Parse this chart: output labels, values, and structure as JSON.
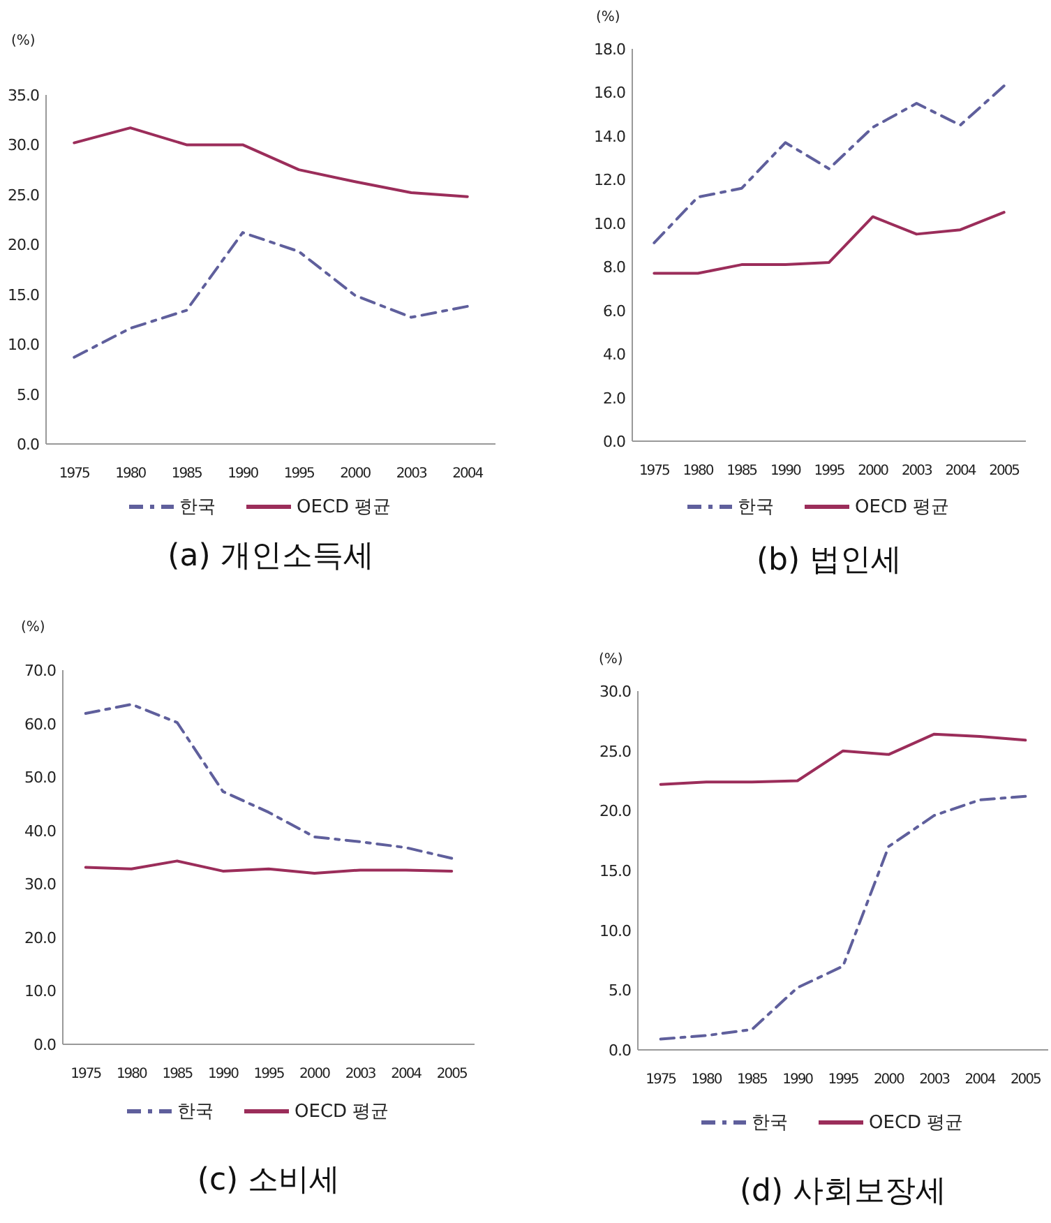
{
  "chart_data": [
    {
      "type": "line",
      "title": "(a) 개인소득세",
      "ylabel": "(%)",
      "categories": [
        "1975",
        "1980",
        "1985",
        "1990",
        "1995",
        "2000",
        "2003",
        "2004"
      ],
      "ylim": [
        0,
        35
      ],
      "yticks": [
        {
          "value": 0,
          "label": "0.0"
        },
        {
          "value": 5,
          "label": "5.0"
        },
        {
          "value": 10,
          "label": "10.0"
        },
        {
          "value": 15,
          "label": "15.0"
        },
        {
          "value": 20,
          "label": "20.0"
        },
        {
          "value": 25,
          "label": "25.0"
        },
        {
          "value": 30,
          "label": "30.0"
        },
        {
          "value": 35,
          "label": "35.0"
        }
      ],
      "legend": "bottom",
      "series": [
        {
          "name": "한국",
          "color": "#5f5f9c",
          "line_style": "dashed",
          "values": [
            8.7,
            11.6,
            13.4,
            21.2,
            19.3,
            14.9,
            12.7,
            13.8
          ]
        },
        {
          "name": "OECD 평균",
          "color": "#9b2d5a",
          "line_style": "solid",
          "values": [
            30.2,
            31.7,
            30.0,
            30.0,
            27.5,
            26.3,
            25.2,
            24.8
          ]
        }
      ]
    },
    {
      "type": "line",
      "title": "(b) 법인세",
      "ylabel": "(%)",
      "categories": [
        "1975",
        "1980",
        "1985",
        "1990",
        "1995",
        "2000",
        "2003",
        "2004",
        "2005"
      ],
      "ylim": [
        0,
        18
      ],
      "yticks": [
        {
          "value": 0,
          "label": "0.0"
        },
        {
          "value": 2,
          "label": "2.0"
        },
        {
          "value": 4,
          "label": "4.0"
        },
        {
          "value": 6,
          "label": "6.0"
        },
        {
          "value": 8,
          "label": "8.0"
        },
        {
          "value": 10,
          "label": "10.0"
        },
        {
          "value": 12,
          "label": "12.0"
        },
        {
          "value": 14,
          "label": "14.0"
        },
        {
          "value": 16,
          "label": "16.0"
        },
        {
          "value": 18,
          "label": "18.0"
        }
      ],
      "legend": "bottom",
      "series": [
        {
          "name": "한국",
          "color": "#5f5f9c",
          "line_style": "dashed",
          "values": [
            9.1,
            11.2,
            11.6,
            13.7,
            12.5,
            14.4,
            15.5,
            14.5,
            16.3
          ]
        },
        {
          "name": "OECD 평균",
          "color": "#9b2d5a",
          "line_style": "solid",
          "values": [
            7.7,
            7.7,
            8.1,
            8.1,
            8.2,
            10.3,
            9.5,
            9.7,
            10.5
          ]
        }
      ]
    },
    {
      "type": "line",
      "title": "(c) 소비세",
      "ylabel": "(%)",
      "categories": [
        "1975",
        "1980",
        "1985",
        "1990",
        "1995",
        "2000",
        "2003",
        "2004",
        "2005"
      ],
      "ylim": [
        0,
        70
      ],
      "yticks": [
        {
          "value": 0,
          "label": "0.0"
        },
        {
          "value": 10,
          "label": "10.0"
        },
        {
          "value": 20,
          "label": "20.0"
        },
        {
          "value": 30,
          "label": "30.0"
        },
        {
          "value": 40,
          "label": "40.0"
        },
        {
          "value": 50,
          "label": "50.0"
        },
        {
          "value": 60,
          "label": "60.0"
        },
        {
          "value": 70,
          "label": "70.0"
        }
      ],
      "legend": "bottom",
      "series": [
        {
          "name": "한국",
          "color": "#5f5f9c",
          "line_style": "dashed",
          "values": [
            61.9,
            63.6,
            60.2,
            47.3,
            43.4,
            38.8,
            37.9,
            36.8,
            34.8
          ]
        },
        {
          "name": "OECD 평균",
          "color": "#9b2d5a",
          "line_style": "solid",
          "values": [
            33.1,
            32.8,
            34.3,
            32.4,
            32.8,
            32.0,
            32.6,
            32.6,
            32.4
          ]
        }
      ]
    },
    {
      "type": "line",
      "title": "(d) 사회보장세",
      "ylabel": "(%)",
      "categories": [
        "1975",
        "1980",
        "1985",
        "1990",
        "1995",
        "2000",
        "2003",
        "2004",
        "2005"
      ],
      "ylim": [
        0,
        30
      ],
      "yticks": [
        {
          "value": 0,
          "label": "0.0"
        },
        {
          "value": 5,
          "label": "5.0"
        },
        {
          "value": 10,
          "label": "10.0"
        },
        {
          "value": 15,
          "label": "15.0"
        },
        {
          "value": 20,
          "label": "20.0"
        },
        {
          "value": 25,
          "label": "25.0"
        },
        {
          "value": 30,
          "label": "30.0"
        }
      ],
      "legend": "bottom",
      "series": [
        {
          "name": "한국",
          "color": "#5f5f9c",
          "line_style": "dashed",
          "values": [
            0.9,
            1.2,
            1.7,
            5.2,
            7.0,
            17.0,
            19.6,
            20.9,
            21.2
          ]
        },
        {
          "name": "OECD 평균",
          "color": "#9b2d5a",
          "line_style": "solid",
          "values": [
            22.2,
            22.4,
            22.4,
            22.5,
            25.0,
            24.7,
            26.4,
            26.2,
            25.9
          ]
        }
      ]
    }
  ]
}
